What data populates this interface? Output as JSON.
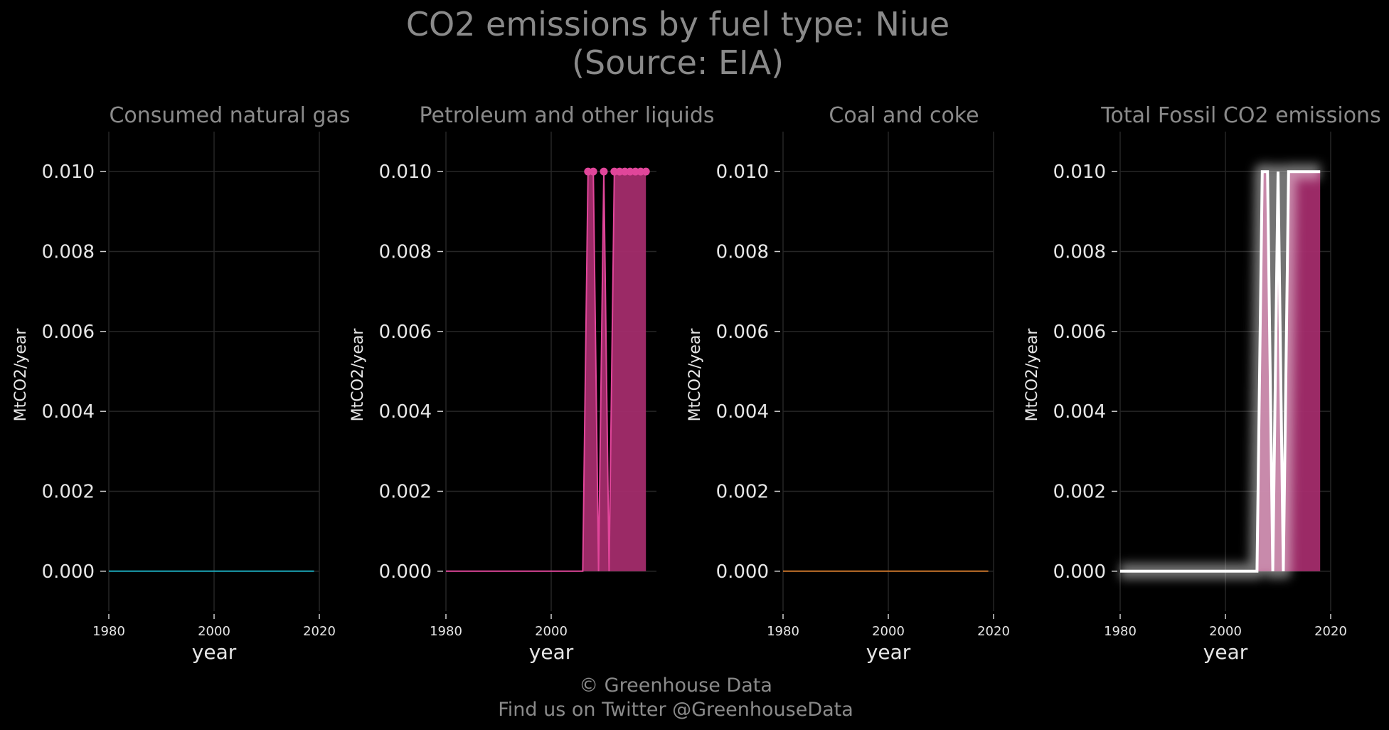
{
  "title_line1": "CO2 emissions by fuel type: Niue",
  "title_line2": "(Source: EIA)",
  "footer_line1": "© Greenhouse Data",
  "footer_line2": "Find us on Twitter @GreenhouseData",
  "colors": {
    "background": "#000000",
    "natural_gas": "#1aa6b7",
    "petroleum": "#e0469a",
    "petroleum_fill": "#a32c6c",
    "coal": "#c8742a",
    "total_line": "#ffffff",
    "grid": "#262626",
    "text": "#e6e6e6",
    "title": "#8a8a8a"
  },
  "chart_data": [
    {
      "type": "line",
      "title": "Consumed natural gas",
      "xlabel": "year",
      "ylabel": "MtCO2/year",
      "xlim": [
        1980,
        2020
      ],
      "ylim": [
        -0.001,
        0.011
      ],
      "x_ticks": [
        "1980",
        "2000",
        "2020"
      ],
      "y_ticks": [
        "0.000",
        "0.002",
        "0.004",
        "0.006",
        "0.008",
        "0.010"
      ],
      "grid": true,
      "series": [
        {
          "color": "#1aa6b7",
          "markers": false,
          "fill": false,
          "x": [
            1980,
            2019
          ],
          "values": [
            0,
            0
          ]
        }
      ]
    },
    {
      "type": "area",
      "title": "Petroleum and other liquids",
      "xlabel": "year",
      "ylabel": "MtCO2/year",
      "xlim": [
        1980,
        2020
      ],
      "ylim": [
        -0.001,
        0.011
      ],
      "x_ticks": [
        "1980",
        "2000"
      ],
      "y_ticks": [
        "0.000",
        "0.002",
        "0.004",
        "0.006",
        "0.008",
        "0.010"
      ],
      "grid": true,
      "series": [
        {
          "color": "#e0469a",
          "markers": true,
          "fill": true,
          "x": [
            1980,
            1981,
            1982,
            1983,
            1984,
            1985,
            1986,
            1987,
            1988,
            1989,
            1990,
            1991,
            1992,
            1993,
            1994,
            1995,
            1996,
            1997,
            1998,
            1999,
            2000,
            2001,
            2002,
            2003,
            2004,
            2005,
            2006,
            2007,
            2008,
            2009,
            2010,
            2011,
            2012,
            2013,
            2014,
            2015,
            2016,
            2017,
            2018
          ],
          "values": [
            0,
            0,
            0,
            0,
            0,
            0,
            0,
            0,
            0,
            0,
            0,
            0,
            0,
            0,
            0,
            0,
            0,
            0,
            0,
            0,
            0,
            0,
            0,
            0,
            0,
            0,
            0,
            0.01,
            0.01,
            0,
            0.01,
            0,
            0.01,
            0.01,
            0.01,
            0.01,
            0.01,
            0.01,
            0.01
          ]
        }
      ]
    },
    {
      "type": "line",
      "title": "Coal and coke",
      "xlabel": "year",
      "ylabel": "MtCO2/year",
      "xlim": [
        1980,
        2020
      ],
      "ylim": [
        -0.001,
        0.011
      ],
      "x_ticks": [
        "1980",
        "2000",
        "2020"
      ],
      "y_ticks": [
        "0.000",
        "0.002",
        "0.004",
        "0.006",
        "0.008",
        "0.010"
      ],
      "grid": true,
      "series": [
        {
          "color": "#c8742a",
          "markers": false,
          "fill": false,
          "x": [
            1980,
            2019
          ],
          "values": [
            0,
            0
          ]
        }
      ]
    },
    {
      "type": "area",
      "title": "Total Fossil CO2 emissions",
      "xlabel": "year",
      "ylabel": "MtCO2/year",
      "xlim": [
        1980,
        2020
      ],
      "ylim": [
        -0.001,
        0.011
      ],
      "x_ticks": [
        "1980",
        "2000",
        "2020"
      ],
      "y_ticks": [
        "0.000",
        "0.002",
        "0.004",
        "0.006",
        "0.008",
        "0.010"
      ],
      "grid": true,
      "series": [
        {
          "color": "#ffffff",
          "markers": false,
          "fill": true,
          "glow": true,
          "x": [
            1980,
            1981,
            1982,
            1983,
            1984,
            1985,
            1986,
            1987,
            1988,
            1989,
            1990,
            1991,
            1992,
            1993,
            1994,
            1995,
            1996,
            1997,
            1998,
            1999,
            2000,
            2001,
            2002,
            2003,
            2004,
            2005,
            2006,
            2007,
            2008,
            2009,
            2010,
            2011,
            2012,
            2013,
            2014,
            2015,
            2016,
            2017,
            2018
          ],
          "values": [
            0,
            0,
            0,
            0,
            0,
            0,
            0,
            0,
            0,
            0,
            0,
            0,
            0,
            0,
            0,
            0,
            0,
            0,
            0,
            0,
            0,
            0,
            0,
            0,
            0,
            0,
            0,
            0.01,
            0.01,
            0,
            0.01,
            0,
            0.01,
            0.01,
            0.01,
            0.01,
            0.01,
            0.01,
            0.01
          ]
        }
      ]
    }
  ]
}
